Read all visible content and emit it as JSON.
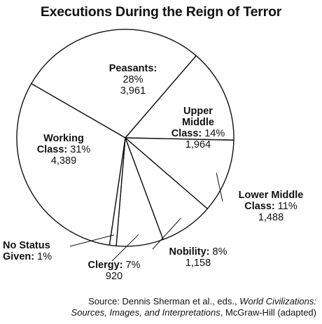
{
  "chart_data": {
    "type": "pie",
    "title": "Executions During the Reign of Terror",
    "slices": [
      {
        "label": "Peasants",
        "percent": "28%",
        "value": 3961
      },
      {
        "label": "Upper Middle Class",
        "percent": "14%",
        "value": 1964
      },
      {
        "label": "Lower Middle Class",
        "percent": "11%",
        "value": 1488
      },
      {
        "label": "Nobility",
        "percent": "8%",
        "value": 1158
      },
      {
        "label": "Clergy",
        "percent": "7%",
        "value": 920
      },
      {
        "label": "No Status Given",
        "percent": "1%",
        "value": null
      },
      {
        "label": "Working Class",
        "percent": "31%",
        "value": 4389
      }
    ],
    "labels": {
      "peasants": {
        "name": "Peasants:",
        "pct": "28%",
        "count": "3,961"
      },
      "upper_middle": {
        "name_1": "Upper",
        "name_2": "Middle",
        "name_3": "Class:",
        "pct": "14%",
        "count": "1,964"
      },
      "lower_middle": {
        "name_1": "Lower Middle",
        "name_2": "Class:",
        "pct": "11%",
        "count": "1,488"
      },
      "nobility": {
        "name": "Nobility:",
        "pct": "8%",
        "count": "1,158"
      },
      "clergy": {
        "name": "Clergy:",
        "pct": "7%",
        "count": "920"
      },
      "no_status": {
        "name_1": "No Status",
        "name_2": "Given:",
        "pct": "1%"
      },
      "working": {
        "name_1": "Working",
        "name_2": "Class:",
        "pct": "31%",
        "count": "4,389"
      }
    },
    "source": {
      "prefix": "Source: Dennis Sherman et al., eds.,",
      "work_1": "World Civilizations:",
      "work_2": "Sources, Images, and Interpretations",
      "suffix": ", McGraw-Hill (adapted)"
    }
  }
}
